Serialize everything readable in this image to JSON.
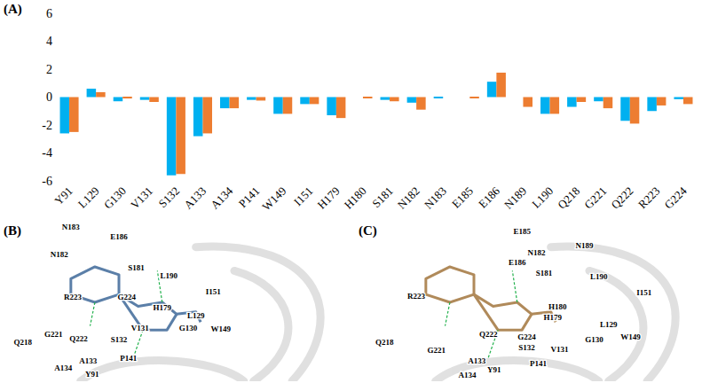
{
  "chart_data": {
    "type": "bar",
    "categories": [
      "Y91",
      "L129",
      "G130",
      "V131",
      "S132",
      "A133",
      "A134",
      "P141",
      "W149",
      "I151",
      "H179",
      "H180",
      "S181",
      "N182",
      "N183",
      "E185",
      "E186",
      "N189",
      "L190",
      "Q218",
      "G221",
      "Q222",
      "R223",
      "G224"
    ],
    "series": [
      {
        "color": "#00b0f0",
        "values": [
          -2.6,
          0.6,
          -0.3,
          -0.2,
          -5.6,
          -2.8,
          -0.8,
          -0.2,
          -1.2,
          -0.5,
          -1.3,
          0,
          -0.2,
          -0.4,
          -0.05,
          0,
          1.1,
          0,
          -1.2,
          -0.7,
          -0.3,
          -1.7,
          -1.0,
          -0.15
        ]
      },
      {
        "color": "#ed7d31",
        "values": [
          -2.5,
          0.35,
          -0.1,
          -0.35,
          -5.5,
          -2.6,
          -0.8,
          -0.25,
          -1.2,
          -0.5,
          -1.5,
          -0.05,
          -0.3,
          -0.9,
          0,
          -0.05,
          1.75,
          -0.7,
          -1.2,
          -0.35,
          -0.8,
          -1.9,
          -0.6,
          -0.5
        ]
      }
    ],
    "ylim": [
      -6,
      6
    ],
    "yticks": [
      -6,
      -4,
      -2,
      0,
      2,
      4,
      6
    ],
    "grid": false
  },
  "panel_labels": [
    "(A)",
    "(B)",
    "(C)"
  ],
  "panels": [
    {
      "residues": [
        "N183",
        "E186",
        "N182",
        "S181",
        "L190",
        "I151",
        "H179",
        "L129",
        "G130",
        "W149",
        "V131",
        "S132",
        "R223",
        "Q218",
        "G221",
        "Q222",
        "G224",
        "A133",
        "A134",
        "P141",
        "Y91"
      ]
    },
    {
      "residues": [
        "E185",
        "N189",
        "N182",
        "E186",
        "S181",
        "L190",
        "I151",
        "H180",
        "H179",
        "R223",
        "L129",
        "Q222",
        "G224",
        "W149",
        "G130",
        "Q218",
        "G221",
        "S132",
        "V131",
        "A133",
        "P141",
        "Y91",
        "A134"
      ]
    }
  ]
}
